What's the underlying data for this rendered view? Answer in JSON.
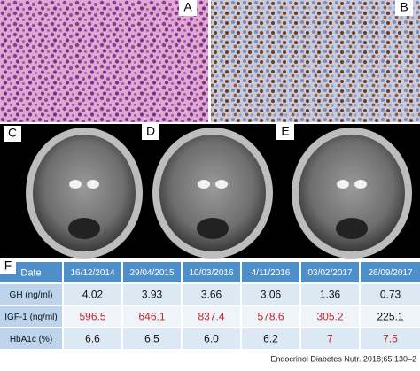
{
  "panels": {
    "a": "A",
    "b": "B",
    "c": "C",
    "d": "D",
    "e": "E",
    "f": "F"
  },
  "table": {
    "header": [
      "Date",
      "16/12/2014",
      "29/04/2015",
      "10/03/2016",
      "4/11/2016",
      "03/02/2017",
      "26/09/2017"
    ],
    "header_color": "#4f8fc9",
    "highlight_color": "#c0262d",
    "rows": [
      {
        "label": "GH (ng/ml)",
        "values": [
          "4.02",
          "3.93",
          "3.66",
          "3.06",
          "1.36",
          "0.73"
        ],
        "highlight": [
          false,
          false,
          false,
          false,
          false,
          false
        ]
      },
      {
        "label": "IGF-1 (ng/ml)",
        "values": [
          "596.5",
          "646.1",
          "837.4",
          "578.6",
          "305.2",
          "225.1"
        ],
        "highlight": [
          true,
          true,
          true,
          true,
          true,
          false
        ]
      },
      {
        "label": "HbA1c (%)",
        "values": [
          "6.6",
          "6.5",
          "6.0",
          "6.2",
          "7",
          "7.5"
        ],
        "highlight": [
          false,
          false,
          false,
          false,
          true,
          true
        ]
      }
    ]
  },
  "footer": "Endocrinol Diabetes Nutr. 2018;65:130–2"
}
